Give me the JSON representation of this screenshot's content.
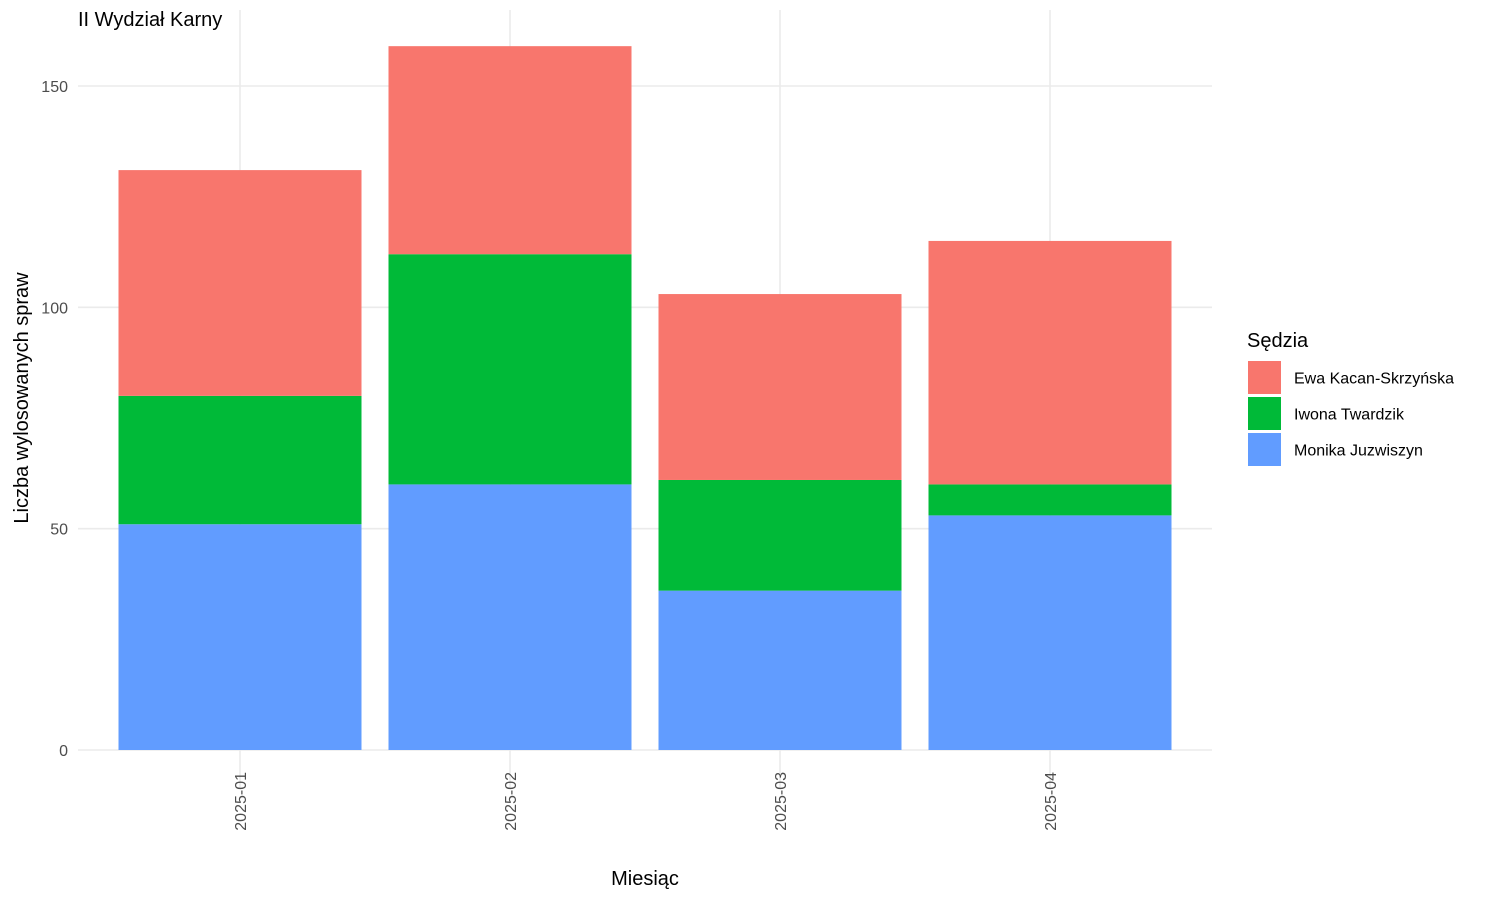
{
  "chart_data": {
    "type": "bar",
    "stacked": true,
    "title": "II Wydział Karny",
    "xlabel": "Miesiąc",
    "ylabel": "Liczba wylosowanych spraw",
    "categories": [
      "2025-01",
      "2025-02",
      "2025-03",
      "2025-04"
    ],
    "ylim": [
      0,
      160
    ],
    "yticks": [
      0,
      50,
      100,
      150
    ],
    "grid": true,
    "x_tick_rotation": "vertical",
    "legend": {
      "title": "Sędzia",
      "position": "right"
    },
    "series": [
      {
        "name": "Monika Juzwiszyn",
        "values": [
          51,
          60,
          36,
          53
        ],
        "color": "#619CFF"
      },
      {
        "name": "Iwona Twardzik",
        "values": [
          29,
          52,
          25,
          7
        ],
        "color": "#00BA38"
      },
      {
        "name": "Ewa Kacan-Skrzyńska",
        "values": [
          51,
          47,
          42,
          55
        ],
        "color": "#F8766D"
      }
    ],
    "legend_order": [
      "Ewa Kacan-Skrzyńska",
      "Iwona Twardzik",
      "Monika Juzwiszyn"
    ]
  }
}
